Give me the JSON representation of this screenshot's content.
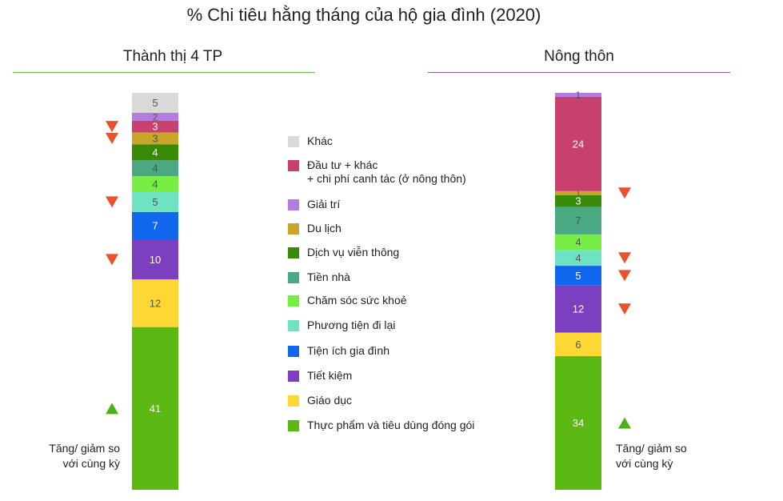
{
  "chart_data": {
    "type": "stacked-bar",
    "title": "% Chi tiêu hằng tháng của hộ gia đình (2020)",
    "categories": [
      {
        "key": "thuc_pham",
        "label": "Thực phẩm và tiêu dùng đóng gói",
        "color": "#5cb813"
      },
      {
        "key": "giao_duc",
        "label": "Giáo dục",
        "color": "#fdd835"
      },
      {
        "key": "tiet_kiem",
        "label": "Tiết kiệm",
        "color": "#7b3fbf"
      },
      {
        "key": "tien_ich",
        "label": "Tiện ích gia đình",
        "color": "#1166ee"
      },
      {
        "key": "phuong_tien",
        "label": "Phương tiện đi lại",
        "color": "#6ee3c3"
      },
      {
        "key": "cham_soc",
        "label": "Chăm sóc sức khoẻ",
        "color": "#77ee44"
      },
      {
        "key": "tien_nha",
        "label": "Tiền nhà",
        "color": "#4aa883"
      },
      {
        "key": "vien_thong",
        "label": "Dịch vụ viễn thông",
        "color": "#3a8a0a"
      },
      {
        "key": "du_lich",
        "label": "Du lịch",
        "color": "#c9a62a"
      },
      {
        "key": "dau_tu",
        "label": "Đầu tư + khác\n+ chi phí canh tác (ở nông thôn)",
        "color": "#c8406e"
      },
      {
        "key": "giai_tri",
        "label": "Giải trí",
        "color": "#b57be0"
      },
      {
        "key": "khac",
        "label": "Khác",
        "color": "#d9d9d9"
      }
    ],
    "legend_order": [
      "khac",
      "dau_tu",
      "giai_tri",
      "du_lich",
      "vien_thong",
      "tien_nha",
      "cham_soc",
      "phuong_tien",
      "tien_ich",
      "tiet_kiem",
      "giao_duc",
      "thuc_pham"
    ],
    "series": [
      {
        "name": "Thành thị 4 TP",
        "values": {
          "thuc_pham": 41,
          "giao_duc": 12,
          "tiet_kiem": 10,
          "tien_ich": 7,
          "phuong_tien": 5,
          "cham_soc": 4,
          "tien_nha": 4,
          "vien_thong": 4,
          "du_lich": 3,
          "dau_tu": 3,
          "giai_tri": 2,
          "khac": 5
        },
        "trends": {
          "thuc_pham": "up",
          "tiet_kiem": "down",
          "phuong_tien": "down",
          "du_lich": "down",
          "dau_tu": "down"
        },
        "note": "Tăng/ giảm so\nvới cùng kỳ",
        "rule_color": "#5fbf4a"
      },
      {
        "name": "Nông thôn",
        "values": {
          "thuc_pham": 34,
          "dau_tu": 24,
          "tiet_kiem": 12,
          "tien_nha": 7,
          "giao_duc": 6,
          "tien_ich": 5,
          "phuong_tien": 4,
          "cham_soc": 4,
          "vien_thong": 3,
          "giai_tri": 1,
          "du_lich": 1
        },
        "trends": {
          "thuc_pham": "up",
          "tiet_kiem": "down",
          "tien_ich": "down",
          "phuong_tien": "down",
          "du_lich": "down"
        },
        "note": "Tăng/ giảm so\nvới cùng kỳ",
        "rule_color": "#a05ab8"
      }
    ],
    "up_color": "#4caf1c",
    "down_color": "#e8522f"
  }
}
